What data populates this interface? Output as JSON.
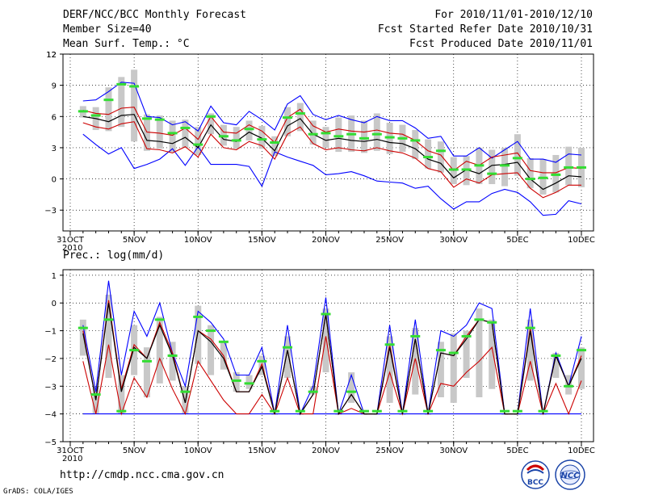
{
  "header": {
    "title": "DERF/NCC/BCC Monthly Forecast",
    "member_size": "Member Size=40",
    "variable": "Mean Surf. Temp.: °C",
    "period": "For 2010/11/01-2010/12/10",
    "start_date": "Fcst Started Refer Date 2010/10/31",
    "produced_date": "Fcst Produced Date 2010/11/01"
  },
  "footer": {
    "url": "http://cmdp.ncc.cma.gov.cn",
    "grads": "GrADS: COLA/IGES",
    "logo_bcc": "BCC",
    "logo_ncc": "NCC"
  },
  "colors": {
    "max_min": "#0000ff",
    "spread": "#cc0000",
    "mean": "#000000",
    "median": "#33dd33",
    "box": "#c8c8c8"
  },
  "chart_data": [
    {
      "type": "line",
      "title": "Mean Surf. Temp.: °C",
      "ylim": [
        -5,
        12
      ],
      "yticks": [
        -3,
        0,
        3,
        6,
        9,
        12
      ],
      "x": "days 0..40 from 2010-10-31",
      "xtick_labels": [
        {
          "day": 0,
          "label": "31OCT",
          "sub": "2010"
        },
        {
          "day": 5,
          "label": "5NOV"
        },
        {
          "day": 10,
          "label": "10NOV"
        },
        {
          "day": 15,
          "label": "15NOV"
        },
        {
          "day": 20,
          "label": "20NOV"
        },
        {
          "day": 25,
          "label": "25NOV"
        },
        {
          "day": 30,
          "label": "30NOV"
        },
        {
          "day": 35,
          "label": "5DEC"
        },
        {
          "day": 40,
          "label": "10DEC"
        }
      ],
      "days": [
        1,
        2,
        3,
        4,
        5,
        6,
        7,
        8,
        9,
        10,
        11,
        12,
        13,
        14,
        15,
        16,
        17,
        18,
        19,
        20,
        21,
        22,
        23,
        24,
        25,
        26,
        27,
        28,
        29,
        30,
        31,
        32,
        33,
        34,
        35,
        36,
        37,
        38,
        39,
        40
      ],
      "series": [
        {
          "name": "max",
          "values": [
            7.5,
            7.6,
            8.4,
            9.3,
            9.2,
            6.0,
            5.9,
            5.2,
            5.5,
            4.6,
            7.0,
            5.4,
            5.2,
            6.5,
            5.7,
            4.7,
            7.2,
            8.0,
            6.2,
            5.7,
            6.1,
            5.7,
            5.4,
            6.0,
            5.6,
            5.6,
            4.9,
            3.9,
            4.1,
            2.2,
            2.2,
            3.0,
            2.0,
            2.8,
            3.6,
            1.9,
            1.9,
            1.6,
            2.4,
            2.3
          ]
        },
        {
          "name": "spread_upper",
          "values": [
            6.6,
            6.3,
            6.2,
            6.8,
            6.9,
            4.5,
            4.4,
            4.2,
            4.9,
            3.8,
            6.0,
            4.5,
            4.4,
            5.2,
            4.6,
            3.5,
            5.9,
            6.7,
            5.1,
            4.5,
            4.8,
            4.6,
            4.5,
            4.7,
            4.4,
            4.3,
            3.7,
            2.7,
            2.3,
            0.8,
            1.7,
            1.3,
            2.1,
            2.3,
            2.5,
            0.8,
            0.6,
            0.6,
            1.1,
            1.0
          ]
        },
        {
          "name": "mean",
          "values": [
            6.0,
            5.8,
            5.5,
            6.1,
            6.2,
            3.7,
            3.6,
            3.4,
            4.0,
            3.0,
            5.2,
            3.8,
            3.6,
            4.5,
            3.9,
            2.7,
            5.1,
            5.8,
            4.3,
            3.7,
            3.9,
            3.7,
            3.6,
            3.8,
            3.5,
            3.4,
            2.9,
            1.9,
            1.5,
            0.1,
            0.9,
            0.5,
            1.3,
            1.4,
            1.6,
            0.0,
            -1.0,
            -0.4,
            0.3,
            0.2
          ]
        },
        {
          "name": "spread_lower",
          "values": [
            5.4,
            5.0,
            4.8,
            5.3,
            5.5,
            2.9,
            2.8,
            2.5,
            3.1,
            2.1,
            4.3,
            3.0,
            2.8,
            3.6,
            3.2,
            1.9,
            4.3,
            5.0,
            3.4,
            2.8,
            3.0,
            2.8,
            2.7,
            3.0,
            2.7,
            2.5,
            2.0,
            1.0,
            0.7,
            -0.8,
            0.0,
            -0.4,
            0.4,
            0.5,
            0.6,
            -0.9,
            -1.8,
            -1.3,
            -0.6,
            -0.6
          ]
        },
        {
          "name": "min",
          "values": [
            4.3,
            3.3,
            2.4,
            3.0,
            1.0,
            1.4,
            1.9,
            2.9,
            1.3,
            3.1,
            1.4,
            1.4,
            1.4,
            1.2,
            -0.7,
            2.6,
            2.1,
            1.7,
            1.3,
            0.4,
            0.5,
            0.7,
            0.3,
            -0.2,
            -0.3,
            -0.4,
            -0.9,
            -0.7,
            -1.9,
            -2.9,
            -2.2,
            -2.2,
            -1.4,
            -1.0,
            -1.3,
            -2.2,
            -3.5,
            -3.4,
            -2.1,
            -2.4
          ]
        },
        {
          "name": "median",
          "values": [
            6.5,
            6.1,
            7.6,
            9.1,
            8.9,
            5.8,
            5.7,
            4.4,
            4.9,
            3.3,
            6.0,
            4.1,
            3.7,
            4.8,
            3.8,
            3.5,
            5.9,
            6.3,
            4.3,
            4.4,
            4.1,
            4.3,
            3.9,
            4.3,
            4.0,
            3.9,
            3.7,
            2.1,
            2.7,
            0.9,
            0.9,
            1.3,
            0.5,
            1.3,
            2.0,
            0.0,
            0.1,
            0.4,
            1.1,
            1.1
          ]
        },
        {
          "name": "box_top",
          "values": [
            7.0,
            6.9,
            8.8,
            9.8,
            10.5,
            6.2,
            6.1,
            5.6,
            5.7,
            5.0,
            6.3,
            5.2,
            5.0,
            5.6,
            5.1,
            4.1,
            6.9,
            7.3,
            5.6,
            5.0,
            5.9,
            6.1,
            5.6,
            6.3,
            5.4,
            5.2,
            4.7,
            3.8,
            3.6,
            2.1,
            2.2,
            3.0,
            2.8,
            3.0,
            4.3,
            2.0,
            1.9,
            2.3,
            3.1,
            3.0
          ]
        },
        {
          "name": "box_bottom",
          "values": [
            5.9,
            4.7,
            4.6,
            5.0,
            3.6,
            2.7,
            2.9,
            2.6,
            3.0,
            2.3,
            4.3,
            3.2,
            2.9,
            3.7,
            2.9,
            2.2,
            4.1,
            4.6,
            3.3,
            3.0,
            2.6,
            2.6,
            2.5,
            2.7,
            2.4,
            2.6,
            1.9,
            1.0,
            0.6,
            -0.5,
            -0.6,
            -0.5,
            -0.5,
            -0.7,
            0.3,
            -0.9,
            -1.5,
            -1.3,
            -0.6,
            -0.8
          ]
        }
      ]
    },
    {
      "type": "line",
      "title": "Prec.: log(mm/d)",
      "ylim": [
        -5,
        1.2
      ],
      "yticks": [
        -5,
        -4,
        -3,
        -2,
        -1,
        0,
        1
      ],
      "x": "days 0..40 from 2010-10-31",
      "days": [
        1,
        2,
        3,
        4,
        5,
        6,
        7,
        8,
        9,
        10,
        11,
        12,
        13,
        14,
        15,
        16,
        17,
        18,
        19,
        20,
        21,
        22,
        23,
        24,
        25,
        26,
        27,
        28,
        29,
        30,
        31,
        32,
        33,
        34,
        35,
        36,
        37,
        38,
        39,
        40
      ],
      "series": [
        {
          "name": "max",
          "values": [
            -0.8,
            -3.2,
            0.8,
            -2.6,
            -0.3,
            -1.2,
            0.0,
            -1.8,
            -3.0,
            -0.3,
            -0.7,
            -1.3,
            -2.6,
            -2.6,
            -1.6,
            -4.0,
            -0.8,
            -4.0,
            -3.0,
            0.2,
            -4.0,
            -2.6,
            -4.0,
            -4.0,
            -0.8,
            -4.0,
            -0.6,
            -4.0,
            -1.0,
            -1.2,
            -0.8,
            0.0,
            -0.2,
            -4.0,
            -4.0,
            -0.2,
            -4.0,
            -1.8,
            -3.0,
            -1.2
          ]
        },
        {
          "name": "spread_upper",
          "values": [
            -1.0,
            -3.5,
            0.1,
            -3.1,
            -1.5,
            -2.0,
            -0.7,
            -1.8,
            -3.6,
            -1.0,
            -1.3,
            -1.9,
            -3.2,
            -3.2,
            -2.2,
            -4.0,
            -1.7,
            -4.0,
            -3.3,
            -0.4,
            -4.0,
            -3.3,
            -4.0,
            -4.0,
            -1.5,
            -4.0,
            -1.3,
            -4.0,
            -1.8,
            -1.9,
            -1.2,
            -0.6,
            -0.7,
            -4.0,
            -4.0,
            -0.9,
            -4.0,
            -1.9,
            -3.0,
            -1.9
          ]
        },
        {
          "name": "mean",
          "values": [
            -1.1,
            -3.5,
            0.0,
            -3.2,
            -1.6,
            -2.0,
            -0.8,
            -1.9,
            -3.6,
            -1.0,
            -1.4,
            -2.0,
            -3.2,
            -3.2,
            -2.3,
            -4.0,
            -1.7,
            -4.0,
            -3.3,
            -0.4,
            -4.0,
            -3.3,
            -4.0,
            -4.0,
            -1.6,
            -4.0,
            -1.3,
            -4.0,
            -1.8,
            -1.9,
            -1.3,
            -0.6,
            -0.7,
            -4.0,
            -4.0,
            -1.0,
            -4.0,
            -1.9,
            -3.0,
            -2.0
          ]
        },
        {
          "name": "spread_lower",
          "values": [
            -2.1,
            -4.0,
            -1.5,
            -4.0,
            -2.7,
            -3.4,
            -2.0,
            -3.1,
            -4.0,
            -2.1,
            -2.8,
            -3.5,
            -4.0,
            -4.0,
            -3.3,
            -4.0,
            -2.7,
            -4.0,
            -4.0,
            -1.2,
            -4.0,
            -3.8,
            -4.0,
            -4.0,
            -2.5,
            -4.0,
            -2.0,
            -4.0,
            -2.9,
            -3.0,
            -2.5,
            -2.1,
            -1.6,
            -4.0,
            -4.0,
            -2.1,
            -4.0,
            -2.9,
            -4.0,
            -2.8
          ]
        },
        {
          "name": "min",
          "values": [
            -4.0,
            -4.0,
            -4.0,
            -4.0,
            -4.0,
            -4.0,
            -4.0,
            -4.0,
            -4.0,
            -4.0,
            -4.0,
            -4.0,
            -4.0,
            -4.0,
            -4.0,
            -4.0,
            -4.0,
            -4.0,
            -4.0,
            -4.0,
            -4.0,
            -4.0,
            -4.0,
            -4.0,
            -4.0,
            -4.0,
            -4.0,
            -4.0,
            -4.0,
            -4.0,
            -4.0,
            -4.0,
            -4.0,
            -4.0,
            -4.0,
            -4.0,
            -4.0,
            -4.0,
            -4.0,
            -4.0
          ]
        },
        {
          "name": "median",
          "values": [
            -0.9,
            -3.3,
            -0.6,
            -3.9,
            -1.7,
            -2.1,
            -0.6,
            -1.9,
            -3.2,
            -0.5,
            -1.0,
            -1.4,
            -2.8,
            -2.9,
            -2.1,
            -3.9,
            -1.6,
            -3.9,
            -3.2,
            -0.4,
            -3.9,
            -3.2,
            -3.9,
            -3.9,
            -1.5,
            -3.9,
            -1.2,
            -3.9,
            -1.7,
            -1.8,
            -1.2,
            -0.6,
            -0.7,
            -3.9,
            -3.9,
            -0.9,
            -3.9,
            -1.9,
            -3.0,
            -1.7
          ]
        },
        {
          "name": "box_top",
          "values": [
            -0.6,
            -3.0,
            0.3,
            -2.6,
            -0.8,
            -1.6,
            -0.5,
            -1.4,
            -3.0,
            -0.1,
            -0.8,
            -1.4,
            -2.5,
            -2.6,
            -1.9,
            -4.0,
            -1.2,
            -4.0,
            -3.0,
            -0.2,
            -4.0,
            -2.5,
            -4.0,
            -4.0,
            -1.2,
            -4.0,
            -0.9,
            -4.0,
            -1.4,
            -1.1,
            -1.0,
            -0.2,
            -0.6,
            -4.0,
            -4.0,
            -0.6,
            -4.0,
            -1.8,
            -2.6,
            -1.6
          ]
        },
        {
          "name": "box_bottom",
          "values": [
            -1.9,
            -4.0,
            -2.7,
            -4.0,
            -2.6,
            -3.4,
            -2.9,
            -2.8,
            -4.0,
            -2.2,
            -2.6,
            -2.4,
            -3.2,
            -3.1,
            -2.6,
            -4.0,
            -2.7,
            -4.0,
            -3.3,
            -2.5,
            -4.0,
            -3.6,
            -4.0,
            -4.0,
            -3.6,
            -4.0,
            -3.3,
            -4.0,
            -3.4,
            -3.6,
            -2.7,
            -3.4,
            -3.1,
            -4.0,
            -4.0,
            -2.8,
            -4.0,
            -2.7,
            -3.3,
            -3.1
          ]
        }
      ]
    }
  ]
}
